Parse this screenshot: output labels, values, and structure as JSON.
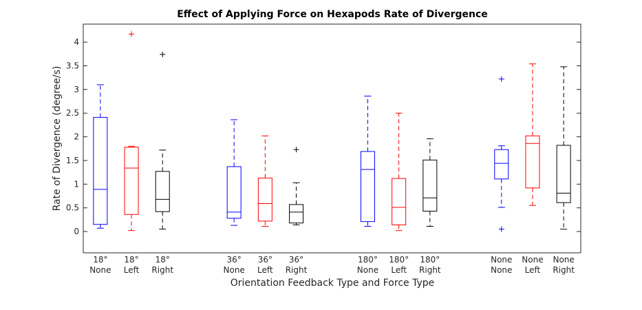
{
  "chart_data": {
    "type": "box",
    "title": "Effect of Applying Force on Hexapods Rate of Divergence",
    "xlabel": "Orientation Feedback Type and Force Type",
    "ylabel": "Rate of Divergence (degree/s)",
    "ylim": [
      -0.45,
      4.38
    ],
    "yticks": [
      0,
      0.5,
      1,
      1.5,
      2,
      2.5,
      3,
      3.5,
      4
    ],
    "ytick_labels": [
      "0",
      "0.5",
      "1",
      "1.5",
      "2",
      "2.5",
      "3",
      "3.5",
      "4"
    ],
    "grid": false,
    "colors": {
      "None": "#0000ff",
      "Left": "#ff0000",
      "Right": "#000000"
    },
    "boxes": [
      {
        "feedback": "18°",
        "force": "None",
        "color": "#0000ff",
        "xpos": 1,
        "whisker_low": 0.07,
        "q1": 0.15,
        "median": 0.89,
        "q3": 2.41,
        "whisker_high": 3.1,
        "outliers": []
      },
      {
        "feedback": "18°",
        "force": "Left",
        "color": "#ff0000",
        "xpos": 2,
        "whisker_low": 0.02,
        "q1": 0.36,
        "median": 1.34,
        "q3": 1.78,
        "whisker_high": 1.8,
        "outliers": [
          4.17
        ]
      },
      {
        "feedback": "18°",
        "force": "Right",
        "color": "#000000",
        "xpos": 3,
        "whisker_low": 0.05,
        "q1": 0.42,
        "median": 0.68,
        "q3": 1.27,
        "whisker_high": 1.72,
        "outliers": [
          3.74
        ]
      },
      {
        "feedback": "36°",
        "force": "None",
        "color": "#0000ff",
        "xpos": 5.3,
        "whisker_low": 0.13,
        "q1": 0.28,
        "median": 0.41,
        "q3": 1.37,
        "whisker_high": 2.36,
        "outliers": []
      },
      {
        "feedback": "36°",
        "force": "Left",
        "color": "#ff0000",
        "xpos": 6.3,
        "whisker_low": 0.11,
        "q1": 0.22,
        "median": 0.59,
        "q3": 1.13,
        "whisker_high": 2.02,
        "outliers": []
      },
      {
        "feedback": "36°",
        "force": "Right",
        "color": "#000000",
        "xpos": 7.3,
        "whisker_low": 0.14,
        "q1": 0.18,
        "median": 0.41,
        "q3": 0.57,
        "whisker_high": 1.03,
        "outliers": [
          1.73
        ]
      },
      {
        "feedback": "180°",
        "force": "None",
        "color": "#0000ff",
        "xpos": 9.6,
        "whisker_low": 0.11,
        "q1": 0.21,
        "median": 1.31,
        "q3": 1.69,
        "whisker_high": 2.86,
        "outliers": []
      },
      {
        "feedback": "180°",
        "force": "Left",
        "color": "#ff0000",
        "xpos": 10.6,
        "whisker_low": 0.02,
        "q1": 0.14,
        "median": 0.51,
        "q3": 1.12,
        "whisker_high": 2.5,
        "outliers": []
      },
      {
        "feedback": "180°",
        "force": "Right",
        "color": "#000000",
        "xpos": 11.6,
        "whisker_low": 0.11,
        "q1": 0.43,
        "median": 0.71,
        "q3": 1.51,
        "whisker_high": 1.96,
        "outliers": []
      },
      {
        "feedback": "None",
        "force": "None",
        "color": "#0000ff",
        "xpos": 13.9,
        "whisker_low": 0.51,
        "q1": 1.11,
        "median": 1.44,
        "q3": 1.73,
        "whisker_high": 1.81,
        "outliers": [
          3.22,
          0.05
        ]
      },
      {
        "feedback": "None",
        "force": "Left",
        "color": "#ff0000",
        "xpos": 14.9,
        "whisker_low": 0.55,
        "q1": 0.92,
        "median": 1.86,
        "q3": 2.02,
        "whisker_high": 3.54,
        "outliers": []
      },
      {
        "feedback": "None",
        "force": "Right",
        "color": "#000000",
        "xpos": 15.9,
        "whisker_low": 0.05,
        "q1": 0.61,
        "median": 0.81,
        "q3": 1.82,
        "whisker_high": 3.48,
        "outliers": []
      }
    ]
  }
}
